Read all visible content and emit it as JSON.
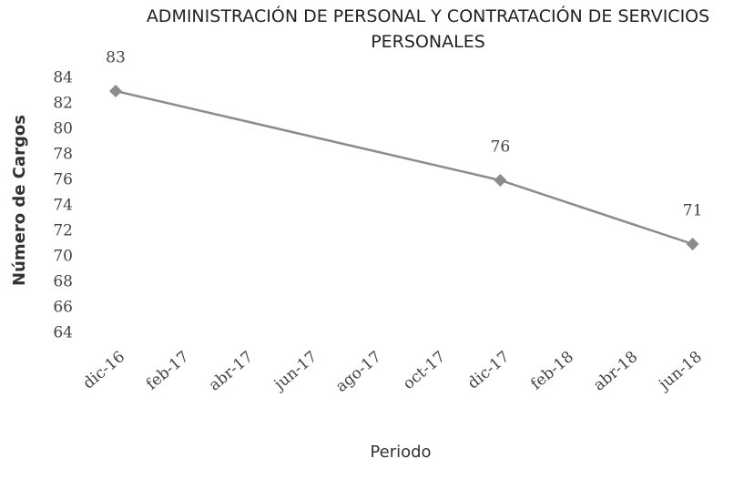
{
  "chart_data": {
    "type": "line",
    "title": "ADMINISTRACIÓN DE PERSONAL Y CONTRATACIÓN DE SERVICIOS PERSONALES",
    "x_label": "Periodo",
    "y_label": "Número de Cargos",
    "x": [
      "dic-16",
      "dic-17",
      "jun-18"
    ],
    "xticks": [
      "dic-16",
      "feb-17",
      "abr-17",
      "jun-17",
      "ago-17",
      "oct-17",
      "dic-17",
      "feb-18",
      "abr-18",
      "jun-18"
    ],
    "series": [
      {
        "name": "Número de Cargos",
        "color": "#8c8c8c",
        "values": [
          83,
          76,
          71
        ]
      }
    ],
    "ylim": [
      64,
      84
    ],
    "yticks": [
      64,
      66,
      68,
      70,
      72,
      74,
      76,
      78,
      80,
      82,
      84
    ],
    "grid": false
  }
}
